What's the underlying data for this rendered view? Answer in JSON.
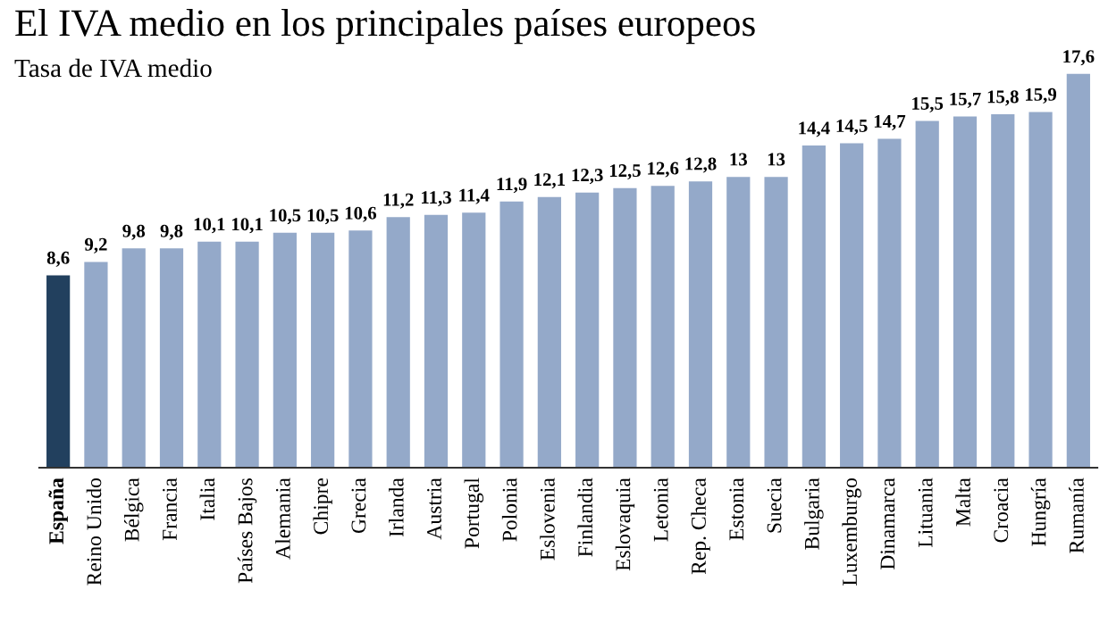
{
  "chart_data": {
    "type": "bar",
    "title": "El IVA medio en los principales países europeos",
    "subtitle": "Tasa de IVA medio",
    "categories": [
      "España",
      "Reino Unido",
      "Bélgica",
      "Francia",
      "Italia",
      "Países Bajos",
      "Alemania",
      "Chipre",
      "Grecia",
      "Irlanda",
      "Austria",
      "Portugal",
      "Polonia",
      "Eslovenia",
      "Finlandia",
      "Eslovaquia",
      "Letonia",
      "Rep. Checa",
      "Estonia",
      "Suecia",
      "Bulgaria",
      "Luxemburgo",
      "Dinamarca",
      "Lituania",
      "Malta",
      "Croacia",
      "Hungría",
      "Rumanía"
    ],
    "values": [
      8.6,
      9.2,
      9.8,
      9.8,
      10.1,
      10.1,
      10.5,
      10.5,
      10.6,
      11.2,
      11.3,
      11.4,
      11.9,
      12.1,
      12.3,
      12.5,
      12.6,
      12.8,
      13,
      13,
      14.4,
      14.5,
      14.7,
      15.5,
      15.7,
      15.8,
      15.9,
      17.6
    ],
    "value_labels": [
      "8,6",
      "9,2",
      "9,8",
      "9,8",
      "10,1",
      "10,1",
      "10,5",
      "10,5",
      "10,6",
      "11,2",
      "11,3",
      "11,4",
      "11,9",
      "12,1",
      "12,3",
      "12,5",
      "12,6",
      "12,8",
      "13",
      "13",
      "14,4",
      "14,5",
      "14,7",
      "15,5",
      "15,7",
      "15,8",
      "15,9",
      "17,6"
    ],
    "colors": [
      "#22405e",
      "#94a9c9",
      "#94a9c9",
      "#94a9c9",
      "#94a9c9",
      "#94a9c9",
      "#94a9c9",
      "#94a9c9",
      "#94a9c9",
      "#94a9c9",
      "#94a9c9",
      "#94a9c9",
      "#94a9c9",
      "#94a9c9",
      "#94a9c9",
      "#94a9c9",
      "#94a9c9",
      "#94a9c9",
      "#94a9c9",
      "#94a9c9",
      "#94a9c9",
      "#94a9c9",
      "#94a9c9",
      "#94a9c9",
      "#94a9c9",
      "#94a9c9",
      "#94a9c9",
      "#94a9c9"
    ],
    "grid": false,
    "legend": false
  }
}
